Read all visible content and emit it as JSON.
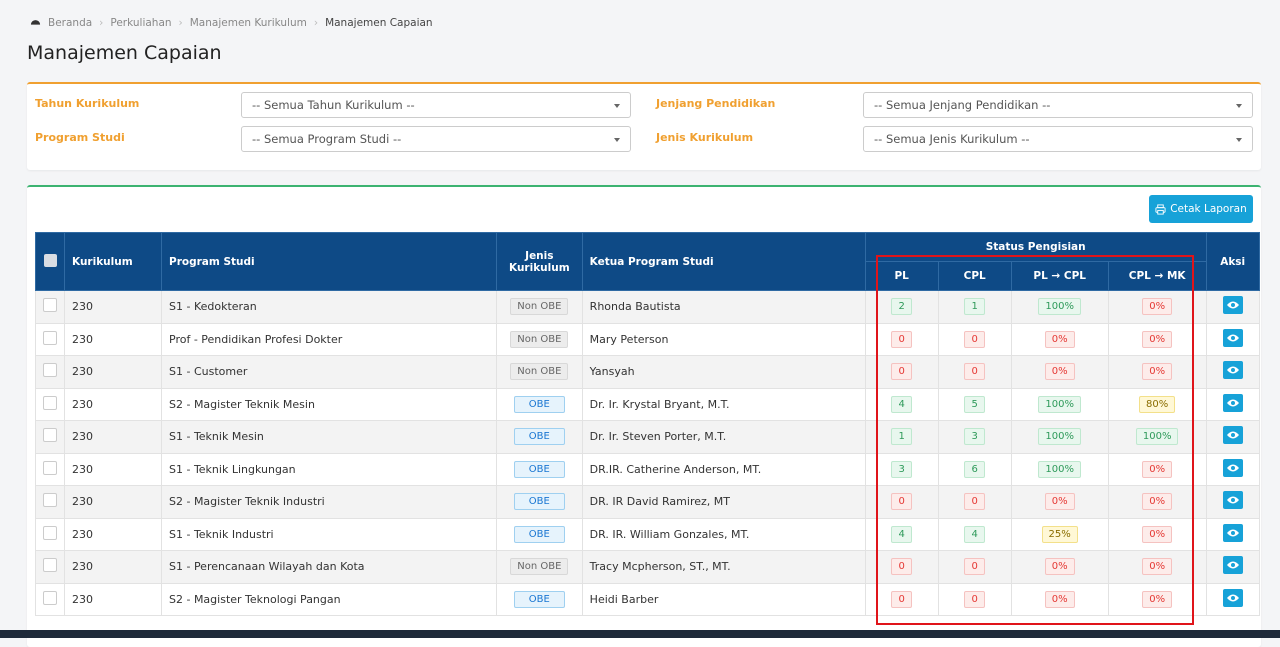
{
  "breadcrumb": [
    "Beranda",
    "Perkuliahan",
    "Manajemen Kurikulum",
    "Manajemen Capaian"
  ],
  "title": "Manajemen Capaian",
  "filters": [
    {
      "label": "Tahun Kurikulum",
      "placeholder": "-- Semua Tahun Kurikulum --"
    },
    {
      "label": "Jenjang Pendidikan",
      "placeholder": "-- Semua Jenjang Pendidikan --"
    },
    {
      "label": "Program Studi",
      "placeholder": "-- Semua Program Studi --"
    },
    {
      "label": "Jenis Kurikulum",
      "placeholder": "-- Semua Jenis Kurikulum --"
    }
  ],
  "print_button": "Cetak Laporan",
  "table": {
    "headers": {
      "kurikulum": "Kurikulum",
      "program_studi": "Program Studi",
      "jenis": "Jenis Kurikulum",
      "ketua": "Ketua Program Studi",
      "status": "Status Pengisian",
      "pl": "PL",
      "cpl": "CPL",
      "pl_cpl": "PL → CPL",
      "cpl_mk": "CPL → MK",
      "aksi": "Aksi"
    },
    "rows": [
      [
        "230",
        "S1 - Kedokteran",
        "Non OBE",
        "Rhonda Bautista",
        "2",
        "1",
        "100%",
        "0%"
      ],
      [
        "230",
        "Prof - Pendidikan Profesi Dokter",
        "Non OBE",
        "Mary Peterson",
        "0",
        "0",
        "0%",
        "0%"
      ],
      [
        "230",
        "S1 - Customer",
        "Non OBE",
        "Yansyah",
        "0",
        "0",
        "0%",
        "0%"
      ],
      [
        "230",
        "S2 - Magister Teknik Mesin",
        "OBE",
        "Dr. Ir. Krystal Bryant, M.T.",
        "4",
        "5",
        "100%",
        "80%"
      ],
      [
        "230",
        "S1 - Teknik Mesin",
        "OBE",
        "Dr. Ir. Steven Porter, M.T.",
        "1",
        "3",
        "100%",
        "100%"
      ],
      [
        "230",
        "S1 - Teknik Lingkungan",
        "OBE",
        "DR.IR. Catherine Anderson, MT.",
        "3",
        "6",
        "100%",
        "0%"
      ],
      [
        "230",
        "S2 - Magister Teknik Industri",
        "OBE",
        "DR. IR David Ramirez, MT",
        "0",
        "0",
        "0%",
        "0%"
      ],
      [
        "230",
        "S1 - Teknik Industri",
        "OBE",
        "DR. IR. William Gonzales, MT.",
        "4",
        "4",
        "25%",
        "0%"
      ],
      [
        "230",
        "S1 - Perencanaan Wilayah dan Kota",
        "Non OBE",
        "Tracy Mcpherson, ST., MT.",
        "0",
        "0",
        "0%",
        "0%"
      ],
      [
        "230",
        "S2 - Magister Teknologi Pangan",
        "OBE",
        "Heidi Barber",
        "0",
        "0",
        "0%",
        "0%"
      ]
    ]
  }
}
